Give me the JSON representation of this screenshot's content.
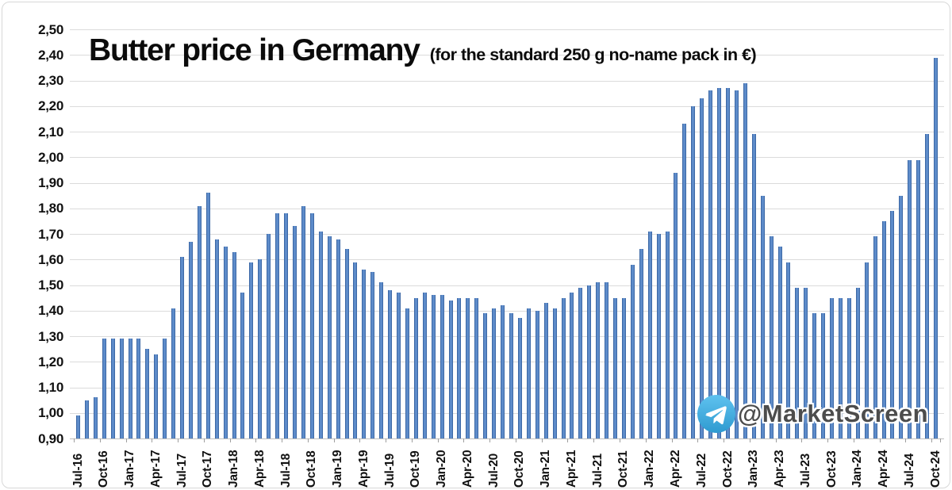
{
  "watermark": {
    "handle": "@MarketScreen",
    "icon": "telegram-icon"
  },
  "chart_data": {
    "type": "bar",
    "title": "Butter price in Germany",
    "subtitle": "(for the standard 250 g no-name pack in €)",
    "x": [
      "Jul-16",
      "Aug-16",
      "Sep-16",
      "Oct-16",
      "Nov-16",
      "Dec-16",
      "Jan-17",
      "Feb-17",
      "Mar-17",
      "Apr-17",
      "May-17",
      "Jun-17",
      "Jul-17",
      "Aug-17",
      "Sep-17",
      "Oct-17",
      "Nov-17",
      "Dec-17",
      "Jan-18",
      "Feb-18",
      "Mar-18",
      "Apr-18",
      "May-18",
      "Jun-18",
      "Jul-18",
      "Aug-18",
      "Sep-18",
      "Oct-18",
      "Nov-18",
      "Dec-18",
      "Jan-19",
      "Feb-19",
      "Mar-19",
      "Apr-19",
      "May-19",
      "Jun-19",
      "Jul-19",
      "Aug-19",
      "Sep-19",
      "Oct-19",
      "Nov-19",
      "Dec-19",
      "Jan-20",
      "Feb-20",
      "Mar-20",
      "Apr-20",
      "May-20",
      "Jun-20",
      "Jul-20",
      "Aug-20",
      "Sep-20",
      "Oct-20",
      "Nov-20",
      "Dec-20",
      "Jan-21",
      "Feb-21",
      "Mar-21",
      "Apr-21",
      "May-21",
      "Jun-21",
      "Jul-21",
      "Aug-21",
      "Sep-21",
      "Oct-21",
      "Nov-21",
      "Dec-21",
      "Jan-22",
      "Feb-22",
      "Mar-22",
      "Apr-22",
      "May-22",
      "Jun-22",
      "Jul-22",
      "Aug-22",
      "Sep-22",
      "Oct-22",
      "Nov-22",
      "Dec-22",
      "Jan-23",
      "Feb-23",
      "Mar-23",
      "Apr-23",
      "May-23",
      "Jun-23",
      "Jul-23",
      "Aug-23",
      "Sep-23",
      "Oct-23",
      "Nov-23",
      "Dec-23",
      "Jan-24",
      "Feb-24",
      "Mar-24",
      "Apr-24",
      "May-24",
      "Jun-24",
      "Jul-24",
      "Aug-24",
      "Sep-24",
      "Oct-24"
    ],
    "values": [
      0.99,
      1.05,
      1.06,
      1.29,
      1.29,
      1.29,
      1.29,
      1.29,
      1.25,
      1.23,
      1.29,
      1.41,
      1.61,
      1.67,
      1.81,
      1.86,
      1.68,
      1.65,
      1.63,
      1.47,
      1.59,
      1.6,
      1.7,
      1.78,
      1.78,
      1.73,
      1.81,
      1.78,
      1.71,
      1.69,
      1.68,
      1.64,
      1.59,
      1.56,
      1.55,
      1.51,
      1.48,
      1.47,
      1.41,
      1.45,
      1.47,
      1.46,
      1.46,
      1.44,
      1.45,
      1.45,
      1.45,
      1.39,
      1.41,
      1.42,
      1.39,
      1.37,
      1.41,
      1.4,
      1.43,
      1.41,
      1.45,
      1.47,
      1.49,
      1.5,
      1.51,
      1.51,
      1.45,
      1.45,
      1.58,
      1.64,
      1.71,
      1.7,
      1.71,
      1.94,
      2.13,
      2.2,
      2.23,
      2.26,
      2.27,
      2.27,
      2.26,
      2.29,
      2.09,
      1.85,
      1.69,
      1.65,
      1.59,
      1.49,
      1.49,
      1.39,
      1.39,
      1.45,
      1.45,
      1.45,
      1.49,
      1.59,
      1.69,
      1.75,
      1.79,
      1.85,
      1.99,
      1.99,
      2.09,
      2.39
    ],
    "x_tick_labels": [
      "Jul-16",
      "Oct-16",
      "Jan-17",
      "Apr-17",
      "Jul-17",
      "Oct-17",
      "Jan-18",
      "Apr-18",
      "Jul-18",
      "Oct-18",
      "Jan-19",
      "Apr-19",
      "Jul-19",
      "Oct-19",
      "Jan-20",
      "Apr-20",
      "Jul-20",
      "Oct-20",
      "Jan-21",
      "Apr-21",
      "Jul-21",
      "Oct-21",
      "Jan-22",
      "Apr-22",
      "Jul-22",
      "Oct-22",
      "Jan-23",
      "Apr-23",
      "Jul-23",
      "Oct-23",
      "Jan-24",
      "Apr-24",
      "Jul-24",
      "Oct-24"
    ],
    "x_label_every": 3,
    "y_tick_labels": [
      "2,50",
      "2,40",
      "2,30",
      "2,20",
      "2,10",
      "2,00",
      "1,90",
      "1,80",
      "1,70",
      "1,60",
      "1,50",
      "1,40",
      "1,30",
      "1,20",
      "1,10",
      "1,00",
      "0,90"
    ],
    "ylim": [
      0.9,
      2.5
    ],
    "y_tick_step": 0.1,
    "decimal_separator": ",",
    "grid": true,
    "legend": false,
    "bar_color": "#5d8bc9",
    "bar_border_color": "#3c68a6",
    "gridline_color": "#dbdbdb",
    "telegram_blue_top": "#5fc2ef",
    "telegram_blue_bottom": "#2e9ad0"
  }
}
